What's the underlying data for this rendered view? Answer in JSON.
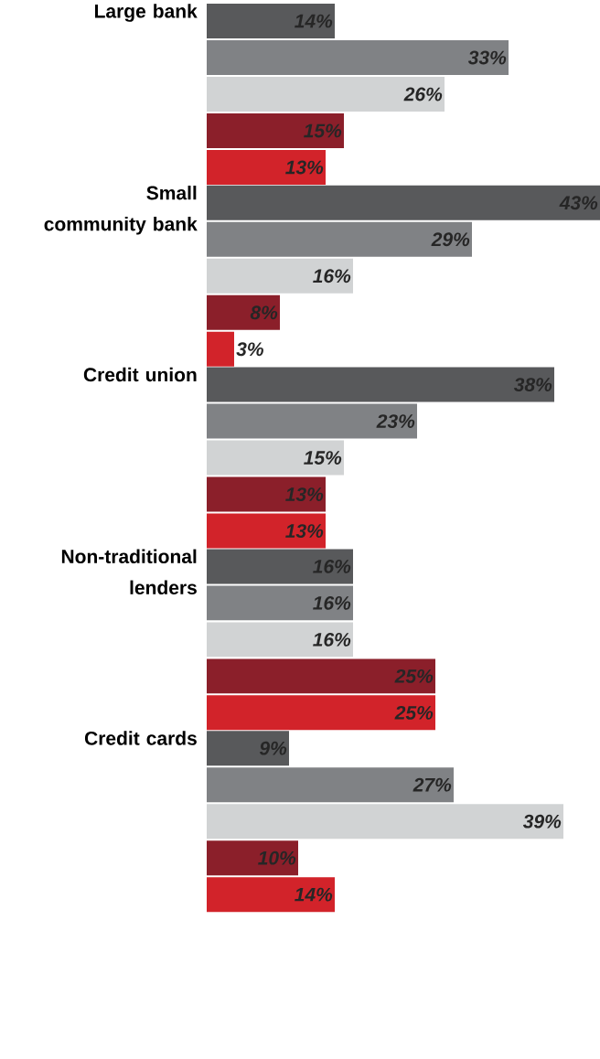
{
  "chart_data": {
    "type": "bar",
    "orientation": "horizontal",
    "categories": [
      "Large bank",
      "Small community bank",
      "Credit union",
      "Non-traditional lenders",
      "Credit cards"
    ],
    "series": [
      {
        "color": "#58595b",
        "values": [
          14,
          43,
          38,
          16,
          9
        ],
        "value_labels": [
          "14%",
          "43%",
          "38%",
          "16%",
          "9%"
        ]
      },
      {
        "color": "#808285",
        "values": [
          33,
          29,
          23,
          16,
          27
        ],
        "value_labels": [
          "33%",
          "29%",
          "23%",
          "16%",
          "27%"
        ]
      },
      {
        "color": "#d1d3d4",
        "values": [
          26,
          16,
          15,
          16,
          39
        ],
        "value_labels": [
          "26%",
          "16%",
          "15%",
          "16%",
          "39%"
        ]
      },
      {
        "color": "#8b1f2a",
        "values": [
          15,
          8,
          13,
          25,
          10
        ],
        "value_labels": [
          "15%",
          "8%",
          "13%",
          "25%",
          "10%"
        ]
      },
      {
        "color": "#d2232a",
        "values": [
          13,
          3,
          13,
          25,
          14
        ],
        "value_labels": [
          "13%",
          "3%",
          "13%",
          "25%",
          "14%"
        ]
      }
    ]
  }
}
